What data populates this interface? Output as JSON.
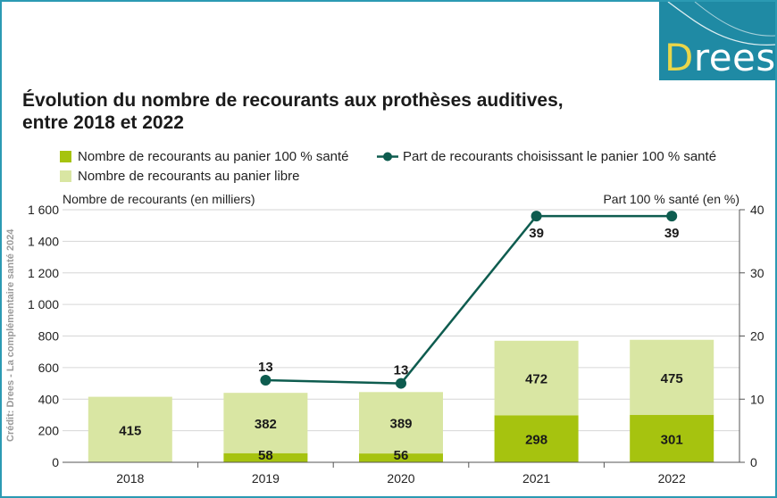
{
  "logo": {
    "text_first": "D",
    "text_rest": "rees"
  },
  "chart_data": {
    "type": "bar",
    "title": "Évolution du nombre de recourants aux prothèses auditives, entre 2018 et 2022",
    "title_lines": [
      "Évolution du nombre de recourants aux prothèses auditives,",
      "entre 2018 et 2022"
    ],
    "categories": [
      "2018",
      "2019",
      "2020",
      "2021",
      "2022"
    ],
    "series": [
      {
        "name": "Nombre de recourants au panier 100 % santé",
        "kind": "stacked-bar",
        "axis": "left",
        "color": "#a6c30f",
        "values": [
          0,
          58,
          56,
          298,
          301
        ],
        "labels": [
          "",
          "58",
          "56",
          "298",
          "301"
        ]
      },
      {
        "name": "Nombre de recourants au panier libre",
        "kind": "stacked-bar",
        "axis": "left",
        "color": "#d9e6a3",
        "values": [
          415,
          382,
          389,
          472,
          475
        ],
        "labels": [
          "415",
          "382",
          "389",
          "472",
          "475"
        ]
      },
      {
        "name": "Part de recourants choisissant le panier 100 % santé",
        "kind": "line",
        "axis": "right",
        "color": "#0e5c4f",
        "values": [
          null,
          13,
          12.5,
          39,
          39
        ],
        "labels": [
          "",
          "13",
          "13",
          "39",
          "39"
        ]
      }
    ],
    "ylabel": "Nombre de recourants (en milliers)",
    "ylabel_right": "Part 100 % santé (en %)",
    "ylim": [
      0,
      1600
    ],
    "yticks": [
      0,
      200,
      400,
      600,
      800,
      1000,
      1200,
      1400,
      1600
    ],
    "ytick_labels": [
      "0",
      "200",
      "400",
      "600",
      "800",
      "1 000",
      "1 200",
      "1 400",
      "1 600"
    ],
    "ylim_right": [
      0,
      40
    ],
    "yticks_right": [
      0,
      10,
      20,
      30,
      40
    ],
    "ytick_labels_right": [
      "0",
      "10",
      "20",
      "30",
      "40"
    ],
    "grid": true,
    "legend_position": "top",
    "credit": "Crédit: Drees - La complémentaire santé 2024"
  }
}
